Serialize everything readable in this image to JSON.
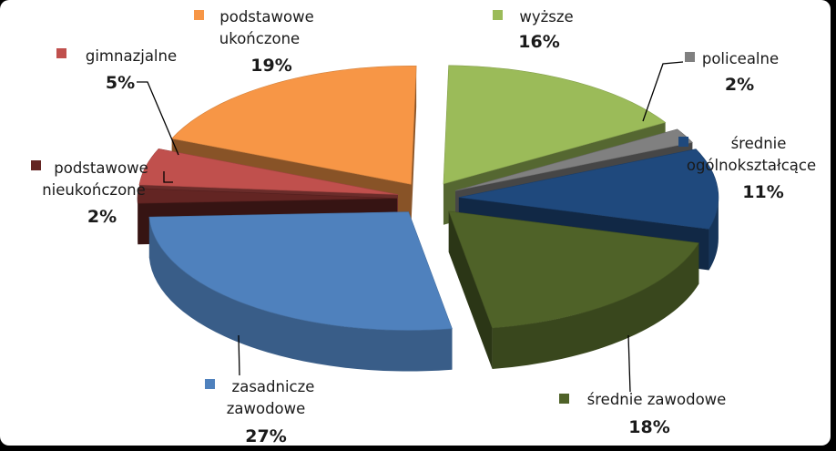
{
  "chart_data": {
    "type": "pie",
    "style": "3d-exploded",
    "title": "",
    "legend_placement": "none",
    "slices": [
      {
        "label": [
          "wyższe"
        ],
        "value": 16,
        "value_label": "16%",
        "color": "#9bbb59"
      },
      {
        "label": [
          "policealne"
        ],
        "value": 2,
        "value_label": "2%",
        "color": "#808080"
      },
      {
        "label": [
          "średnie",
          "ogólnokształcące"
        ],
        "value": 11,
        "value_label": "11%",
        "color": "#1f497d"
      },
      {
        "label": [
          "średnie zawodowe"
        ],
        "value": 18,
        "value_label": "18%",
        "color": "#4f6228"
      },
      {
        "label": [
          "zasadnicze",
          "zawodowe"
        ],
        "value": 27,
        "value_label": "27%",
        "color": "#4f81bd"
      },
      {
        "label": [
          "podstawowe",
          "nieukończone"
        ],
        "value": 2,
        "value_label": "2%",
        "color": "#632523"
      },
      {
        "label": [
          "gimnazjalne"
        ],
        "value": 5,
        "value_label": "5%",
        "color": "#c0504d"
      },
      {
        "label": [
          "podstawowe",
          "ukończone"
        ],
        "value": 19,
        "value_label": "19%",
        "color": "#f79646"
      }
    ]
  }
}
